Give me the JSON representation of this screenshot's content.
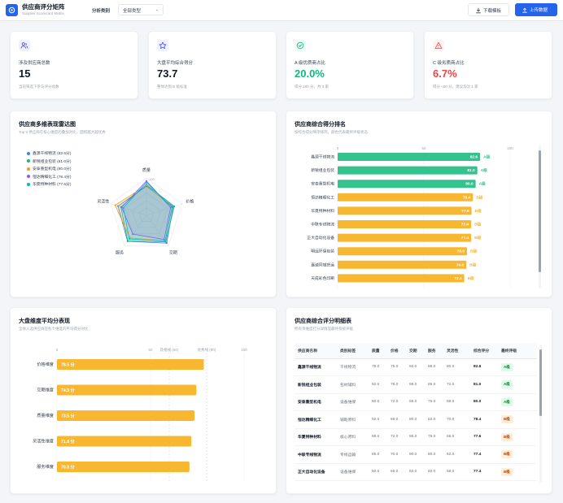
{
  "header": {
    "title": "供应商评分矩阵",
    "subtitle": "Supplier Scorecard Matrix",
    "filter_label": "分析类别",
    "filter_value": "全部类型",
    "download_label": "下载模板",
    "upload_label": "上传数据"
  },
  "kpis": [
    {
      "label": "涉及供应商总数",
      "value": "15",
      "sub": "当前筛选下参与评分总数",
      "icon": "users-icon",
      "color": "#4f46e5",
      "bg": "#eef2ff"
    },
    {
      "label": "大盘平均综合得分",
      "value": "73.7",
      "sub": "整体达到 B 级标准",
      "icon": "star-icon",
      "color": "#4f46e5",
      "bg": "#eef2ff"
    },
    {
      "label": "A 级优质商占比",
      "value": "20.0%",
      "sub": "得分 ≥80 分，共 3 家",
      "icon": "check-circle-icon",
      "color": "#10b981",
      "bg": "#ecfdf5"
    },
    {
      "label": "C 级劣质商占比",
      "value": "6.7%",
      "sub": "得分 <60 分，建议淘汰 1 家",
      "icon": "warning-icon",
      "color": "#ef4444",
      "bg": "#fef2f2"
    }
  ],
  "radar": {
    "title": "供应商多维表现雷达图",
    "subtitle": "Top 5 供应商在核心维度的叠加对比，面积越大越优秀",
    "axes": [
      "质量",
      "价格",
      "交期",
      "服务",
      "灵活性"
    ],
    "tick_label": "100",
    "series": [
      {
        "label": "鑫源干线物流 (82.6分)",
        "color": "#3b82f6",
        "values": [
          78,
          75,
          92,
          86,
          80
        ]
      },
      {
        "label": "新锐组业包装 (81.0分)",
        "color": "#10b981",
        "values": [
          82,
          78,
          88,
          85,
          72
        ]
      },
      {
        "label": "安泰重型机电 (80.0分)",
        "color": "#f59e0b",
        "values": [
          80,
          72,
          85,
          75,
          88
        ]
      },
      {
        "label": "恒达精细化工 (78.4分)",
        "color": "#8b5cf6",
        "values": [
          92,
          68,
          80,
          62,
          70
        ]
      },
      {
        "label": "华夏特种材料 (77.6分)",
        "color": "#06b6d4",
        "values": [
          88,
          72,
          85,
          78,
          65
        ]
      }
    ]
  },
  "ranking": {
    "title": "供应商综合得分排名",
    "subtitle": "按综合得分降序排列，颜色代表最终评级状态",
    "ticks": [
      "0",
      "50",
      "100"
    ],
    "rows": [
      {
        "name": "鑫源干线物流",
        "score": 82.6,
        "label": "82.6",
        "grade": "A级"
      },
      {
        "name": "新锐组业包装",
        "score": 81.0,
        "label": "81.0",
        "grade": "A级"
      },
      {
        "name": "安泰重型机电",
        "score": 80.0,
        "label": "80.0",
        "grade": "A级"
      },
      {
        "name": "恒达精细化工",
        "score": 78.4,
        "label": "78.4",
        "grade": "B级"
      },
      {
        "name": "华夏特种材料",
        "score": 77.6,
        "label": "77.6",
        "grade": "B级"
      },
      {
        "name": "中联专线物流",
        "score": 77.4,
        "label": "77.4",
        "grade": "B级"
      },
      {
        "name": "正大自动化设备",
        "score": 77.4,
        "label": "77.4",
        "grade": "B级"
      },
      {
        "name": "明远环保包装",
        "score": 75.0,
        "label": "75.0",
        "grade": "B级"
      },
      {
        "name": "嘉诚同城货运",
        "score": 74.6,
        "label": "74.6",
        "grade": "B级"
      },
      {
        "name": "天成彩色印刷",
        "score": 73.4,
        "label": "73.4",
        "grade": "B级"
      }
    ],
    "colors": {
      "A级": "#34c38f",
      "B级": "#f7b731"
    }
  },
  "dimension": {
    "title": "大盘维度平均分表现",
    "subtitle": "全体入选供应商在各个维度的平均得分对比",
    "ticks": [
      "0",
      "50",
      "100"
    ],
    "ref_lines": [
      {
        "label": "及格线 (60)",
        "value": 60
      },
      {
        "label": "优秀线 (80)",
        "value": 80
      }
    ],
    "rows": [
      {
        "name": "价格维度",
        "value": 78.5,
        "label": "78.5 分"
      },
      {
        "name": "交期维度",
        "value": 74.5,
        "label": "74.5 分"
      },
      {
        "name": "质量维度",
        "value": 73.5,
        "label": "73.5 分"
      },
      {
        "name": "灵活性维度",
        "value": 71.8,
        "label": "71.8 分"
      },
      {
        "name": "服务维度",
        "value": 70.8,
        "label": "70.8 分"
      }
    ]
  },
  "detail": {
    "title": "供应商综合评分明细表",
    "subtitle": "所有单维度打分详情及最终系统评级",
    "headers": [
      "供应商名称",
      "类别标签",
      "质量",
      "价格",
      "交期",
      "服务",
      "灵活性",
      "综合评分",
      "最终评级"
    ],
    "rows": [
      [
        "鑫源干线物流",
        "干线物流",
        "78.0",
        "75.0",
        "92.0",
        "86.0",
        "80.0",
        "82.6",
        "A级"
      ],
      [
        "新锐组业包装",
        "包材辅料",
        "82.0",
        "78.0",
        "88.0",
        "85.0",
        "72.0",
        "81.0",
        "A级"
      ],
      [
        "安泰重型机电",
        "设备维保",
        "80.0",
        "72.0",
        "85.0",
        "75.0",
        "88.0",
        "80.0",
        "A级"
      ],
      [
        "恒达精细化工",
        "辅助原料",
        "92.0",
        "68.0",
        "80.0",
        "62.0",
        "70.0",
        "78.4",
        "B级"
      ],
      [
        "华夏特种材料",
        "核心原料",
        "88.0",
        "72.0",
        "85.0",
        "78.0",
        "65.0",
        "77.6",
        "B级"
      ],
      [
        "中联专线物流",
        "专线运输",
        "85.0",
        "70.0",
        "90.0",
        "80.0",
        "62.0",
        "77.4",
        "B级"
      ],
      [
        "正大自动化设备",
        "设备维保",
        "90.0",
        "65.0",
        "82.0",
        "92.0",
        "58.0",
        "77.4",
        "B级"
      ]
    ]
  }
}
